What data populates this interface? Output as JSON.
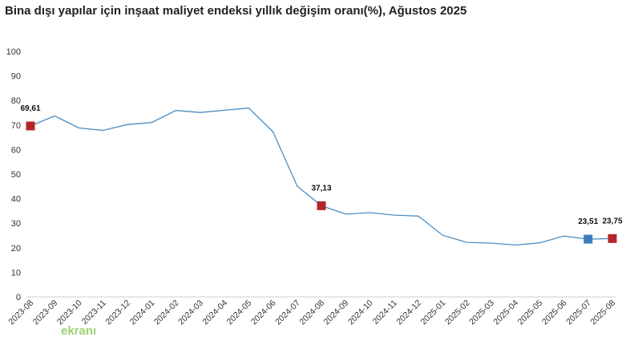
{
  "chart_data": {
    "type": "line",
    "title": "Bina dışı yapılar için inşaat maliyet endeksi yıllık değişim oranı(%), Ağustos 2025",
    "xlabel": "",
    "ylabel": "",
    "ylim": [
      0,
      100
    ],
    "yticks": [
      0,
      10,
      20,
      30,
      40,
      50,
      60,
      70,
      80,
      90,
      100
    ],
    "grid": false,
    "categories": [
      "2023-08",
      "2023-09",
      "2023-10",
      "2023-11",
      "2023-12",
      "2024-01",
      "2024-02",
      "2024-03",
      "2024-04",
      "2024-05",
      "2024-06",
      "2024-07",
      "2024-08",
      "2024-09",
      "2024-10",
      "2024-11",
      "2024-12",
      "2025-01",
      "2025-02",
      "2025-03",
      "2025-04",
      "2025-05",
      "2025-06",
      "2025-07",
      "2025-08"
    ],
    "series": [
      {
        "values": [
          69.61,
          73.7,
          68.8,
          67.8,
          70.2,
          71.0,
          75.9,
          75.1,
          76.0,
          76.9,
          67.3,
          45.1,
          37.13,
          33.7,
          34.3,
          33.3,
          32.9,
          25.1,
          22.2,
          21.9,
          21.1,
          22.0,
          24.8,
          23.51,
          23.75
        ],
        "color": "#4a8ec4"
      }
    ],
    "highlights": [
      {
        "category": "2023-08",
        "value": 69.61,
        "label": "69,61",
        "color": "#b5262b"
      },
      {
        "category": "2024-08",
        "value": 37.13,
        "label": "37,13",
        "color": "#b5262b"
      },
      {
        "category": "2025-07",
        "value": 23.51,
        "label": "23,51",
        "color": "#3a7cbf"
      },
      {
        "category": "2025-08",
        "value": 23.75,
        "label": "23,75",
        "color": "#b5262b"
      }
    ]
  },
  "watermark": {
    "text": "ekranı"
  }
}
